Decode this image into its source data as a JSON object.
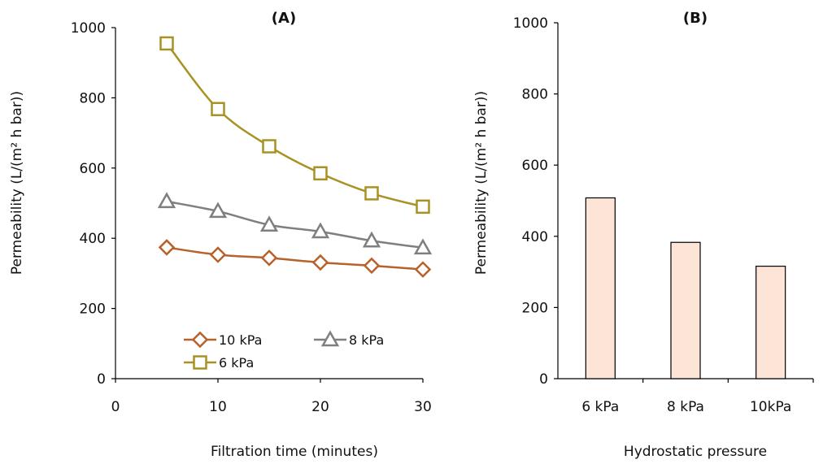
{
  "chart_data": [
    {
      "type": "line",
      "title": "(A)",
      "xlabel": "Filtration time (minutes)",
      "ylabel": "Permeability (L/(m² h bar))",
      "xlim": [
        0,
        30
      ],
      "ylim": [
        0,
        1000
      ],
      "xticks": [
        "0",
        "10",
        "20",
        "30"
      ],
      "yticks": [
        "0",
        "200",
        "400",
        "600",
        "800",
        "1000"
      ],
      "grid": false,
      "legend_position": "bottom-left",
      "x": [
        5,
        10,
        15,
        20,
        25,
        30
      ],
      "series": [
        {
          "name": "10 kPa",
          "marker": "diamond",
          "color": "#b8612b",
          "values": [
            374,
            353,
            344,
            331,
            322,
            311
          ]
        },
        {
          "name": "8 kPa",
          "marker": "triangle",
          "color": "#7f7f7f",
          "values": [
            505,
            477,
            438,
            419,
            393,
            373
          ]
        },
        {
          "name": "6 kPa",
          "marker": "square",
          "color": "#a89224",
          "values": [
            955,
            768,
            662,
            585,
            528,
            490
          ]
        }
      ]
    },
    {
      "type": "bar",
      "title": "(B)",
      "xlabel": "Hydrostatic pressure",
      "ylabel": "Permeability (L/(m² h bar))",
      "ylim": [
        0,
        1000
      ],
      "yticks": [
        "0",
        "200",
        "400",
        "600",
        "800",
        "1000"
      ],
      "grid": false,
      "bar_color": "#fce4d6",
      "categories": [
        "6 kPa",
        "8 kPa",
        "10kPa"
      ],
      "values": [
        508,
        383,
        316
      ]
    }
  ]
}
